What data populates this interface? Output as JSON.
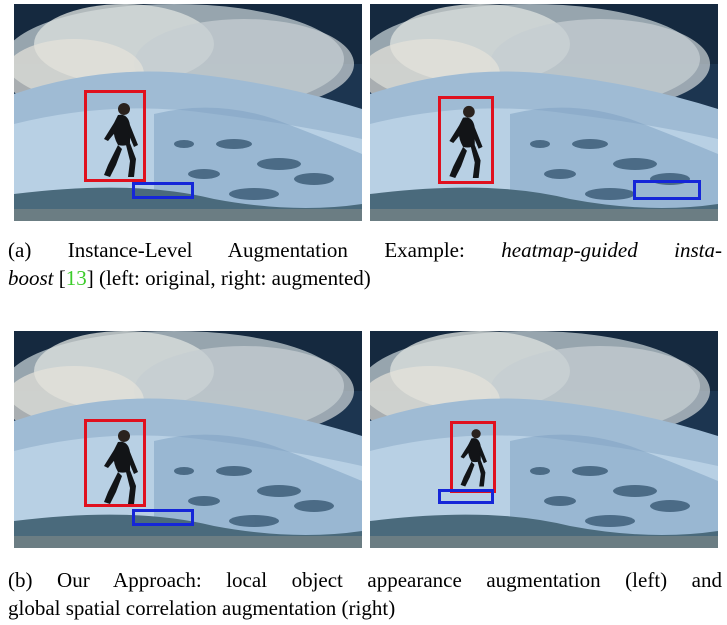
{
  "figure": {
    "panel_a": {
      "images": [
        {
          "label": "original",
          "boxes": [
            "red",
            "blue"
          ]
        },
        {
          "label": "augmented",
          "boxes": [
            "red",
            "blue"
          ]
        }
      ],
      "caption": {
        "tag": "(a)",
        "text_before": "Instance-Level Augmentation Example: ",
        "method_line1": "heatmap-guided insta-",
        "method_line2": "boost",
        "citation_open": " [",
        "citation": "13",
        "citation_close": "]",
        "text_after": " (left: original, right: augmented)"
      }
    },
    "panel_b": {
      "images": [
        {
          "label": "local object appearance augmentation",
          "boxes": [
            "red",
            "blue"
          ]
        },
        {
          "label": "global spatial correlation augmentation",
          "boxes": [
            "red",
            "blue"
          ]
        }
      ],
      "caption": {
        "tag": "(b)",
        "line1": "Our Approach: local object appearance augmentation (left) and",
        "line2": "global spatial correlation augmentation (right)"
      }
    },
    "colors": {
      "object_box_red": "#e0101e",
      "object_box_blue": "#1526d8",
      "citation_green": "#3ccc2a",
      "sky": "#1d3a55",
      "water": "#a9c6de"
    }
  }
}
